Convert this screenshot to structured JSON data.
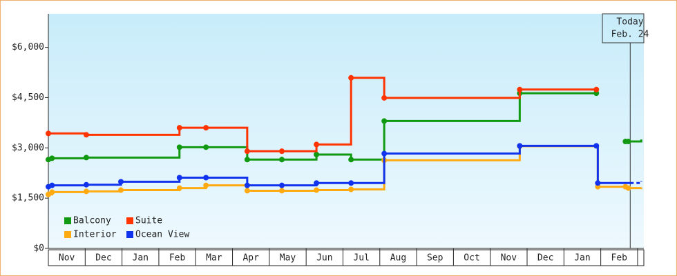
{
  "chart_data": {
    "type": "step-line",
    "xlim": [
      0,
      16.17
    ],
    "xticks": [
      {
        "value": 0.5,
        "label": "Nov"
      },
      {
        "value": 1.5,
        "label": "Dec"
      },
      {
        "value": 2.5,
        "label": "Jan"
      },
      {
        "value": 3.5,
        "label": "Feb"
      },
      {
        "value": 4.5,
        "label": "Mar"
      },
      {
        "value": 5.5,
        "label": "Apr"
      },
      {
        "value": 6.5,
        "label": "May"
      },
      {
        "value": 7.5,
        "label": "Jun"
      },
      {
        "value": 8.5,
        "label": "Jul"
      },
      {
        "value": 9.5,
        "label": "Aug"
      },
      {
        "value": 10.5,
        "label": "Sep"
      },
      {
        "value": 11.5,
        "label": "Oct"
      },
      {
        "value": 12.5,
        "label": "Nov"
      },
      {
        "value": 13.5,
        "label": "Dec"
      },
      {
        "value": 14.5,
        "label": "Jan"
      },
      {
        "value": 15.5,
        "label": "Feb"
      }
    ],
    "ylim": [
      0,
      7000
    ],
    "yticks": [
      {
        "value": 0,
        "label": "$0"
      },
      {
        "value": 1500,
        "label": "$1,500"
      },
      {
        "value": 3000,
        "label": "$3,000"
      },
      {
        "value": 4500,
        "label": "$4,500"
      },
      {
        "value": 6000,
        "label": "$6,000"
      }
    ],
    "today": {
      "x": 15.8,
      "label": [
        "Today",
        "Feb. 24"
      ]
    },
    "series": [
      {
        "name": "Balcony",
        "color": "#119911",
        "x": [
          0,
          0.1,
          1.03,
          3.56,
          4.28,
          5.4,
          6.34,
          7.28,
          8.22,
          9.12,
          12.8,
          14.88,
          null,
          15.67,
          15.75,
          16.1
        ],
        "values": [
          2650,
          2690,
          2710,
          3020,
          3020,
          2650,
          2650,
          2800,
          2650,
          3800,
          4630,
          4630,
          null,
          3190,
          3190,
          3250
        ]
      },
      {
        "name": "Suite",
        "color": "#ff3300",
        "x": [
          0,
          1.03,
          3.56,
          4.28,
          5.4,
          6.34,
          7.28,
          8.22,
          9.12,
          12.8,
          14.88
        ],
        "values": [
          3430,
          3390,
          3600,
          3600,
          2900,
          2900,
          3100,
          5090,
          4490,
          4740,
          4740
        ]
      },
      {
        "name": "Interior",
        "color": "#ffaa11",
        "x": [
          0,
          0.1,
          1.03,
          1.97,
          3.56,
          4.28,
          5.4,
          6.34,
          7.28,
          8.22,
          9.12,
          12.8,
          14.92,
          15.67,
          15.75,
          16.1
        ],
        "values": [
          1610,
          1680,
          1700,
          1740,
          1800,
          1880,
          1720,
          1720,
          1740,
          1760,
          2630,
          3050,
          1840,
          1840,
          1800,
          1820
        ]
      },
      {
        "name": "Ocean View",
        "color": "#1133ee",
        "x": [
          0,
          0.1,
          1.03,
          1.97,
          3.56,
          4.28,
          5.4,
          6.34,
          7.28,
          8.22,
          9.12,
          12.8,
          14.88,
          14.92,
          15.8,
          16.1
        ],
        "values": [
          1840,
          1880,
          1900,
          1990,
          2110,
          2110,
          1880,
          1880,
          1950,
          1950,
          2830,
          3060,
          3060,
          1950,
          1950,
          2010
        ]
      }
    ]
  }
}
